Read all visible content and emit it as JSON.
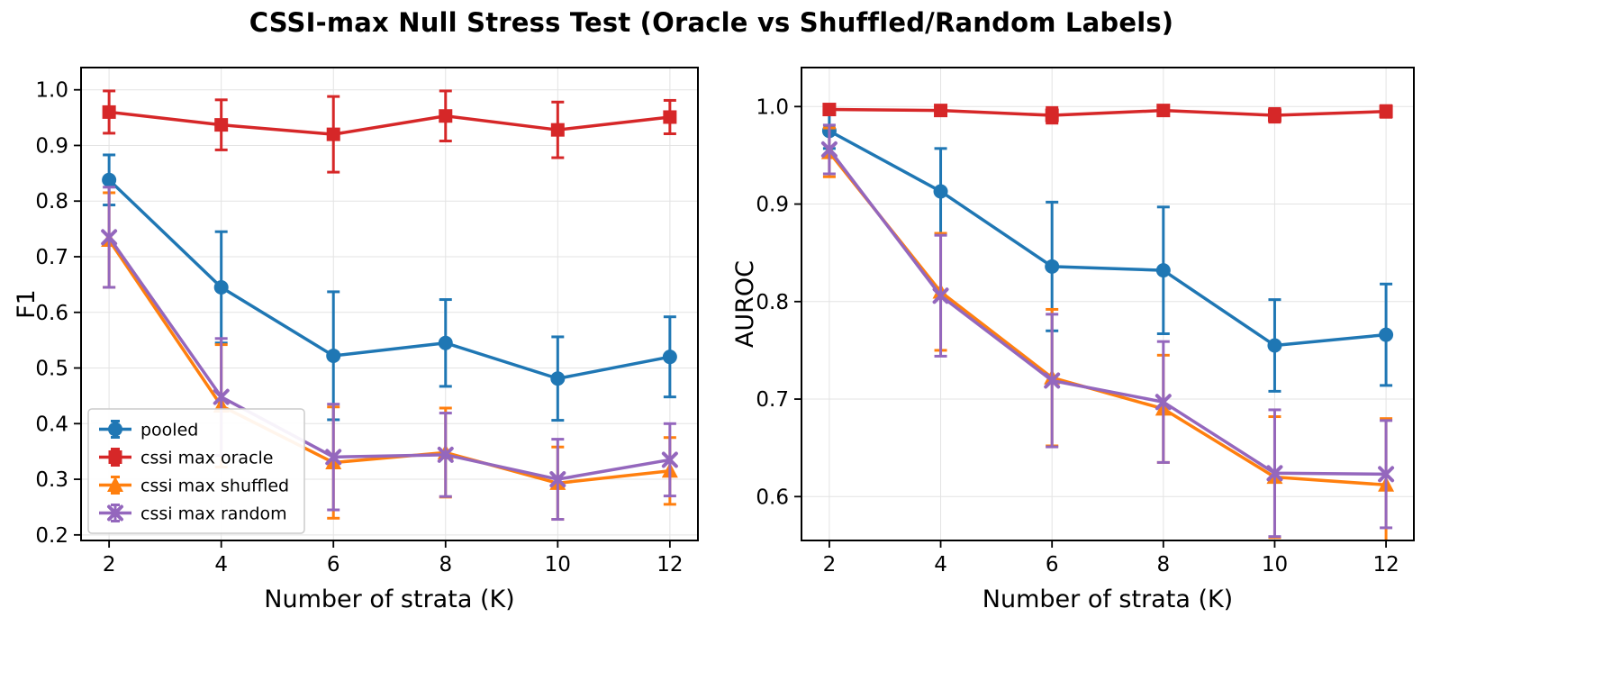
{
  "title": "CSSI-max Null Stress Test (Oracle vs Shuffled/Random Labels)",
  "colors": {
    "pooled": "#1f77b4",
    "cssi_max_oracle": "#d62728",
    "cssi_max_shuffled": "#ff7f0e",
    "cssi_max_random": "#9467bd"
  },
  "chart_data": [
    {
      "type": "line",
      "title": "",
      "xlabel": "Number of strata (K)",
      "ylabel": "F1",
      "x": [
        2,
        4,
        6,
        8,
        10,
        12
      ],
      "xlim": [
        1.5,
        12.5
      ],
      "ylim": [
        0.19,
        1.04
      ],
      "yticks": [
        0.2,
        0.3,
        0.4,
        0.5,
        0.6,
        0.7,
        0.8,
        0.9,
        1.0
      ],
      "grid": true,
      "legend": {
        "visible": true,
        "position": "lower left",
        "entries": [
          "pooled",
          "cssi max oracle",
          "cssi max shuffled",
          "cssi max random"
        ]
      },
      "series": [
        {
          "name": "pooled",
          "color": "#1f77b4",
          "marker": "circle",
          "values": [
            0.838,
            0.645,
            0.522,
            0.545,
            0.481,
            0.52
          ],
          "yerr": [
            0.045,
            0.1,
            0.115,
            0.078,
            0.075,
            0.072
          ]
        },
        {
          "name": "cssi max oracle",
          "color": "#d62728",
          "marker": "square",
          "values": [
            0.96,
            0.937,
            0.92,
            0.953,
            0.928,
            0.951
          ],
          "yerr": [
            0.038,
            0.045,
            0.068,
            0.045,
            0.05,
            0.03
          ]
        },
        {
          "name": "cssi max shuffled",
          "color": "#ff7f0e",
          "marker": "triangle",
          "values": [
            0.73,
            0.432,
            0.33,
            0.348,
            0.293,
            0.315
          ],
          "yerr": [
            0.085,
            0.11,
            0.1,
            0.08,
            0.065,
            0.06
          ]
        },
        {
          "name": "cssi max random",
          "color": "#9467bd",
          "marker": "x",
          "values": [
            0.735,
            0.448,
            0.34,
            0.344,
            0.3,
            0.335
          ],
          "yerr": [
            0.09,
            0.105,
            0.095,
            0.075,
            0.072,
            0.065
          ]
        }
      ]
    },
    {
      "type": "line",
      "title": "",
      "xlabel": "Number of strata (K)",
      "ylabel": "AUROC",
      "x": [
        2,
        4,
        6,
        8,
        10,
        12
      ],
      "xlim": [
        1.5,
        12.5
      ],
      "ylim": [
        0.555,
        1.04
      ],
      "yticks": [
        0.6,
        0.7,
        0.8,
        0.9,
        1.0
      ],
      "grid": true,
      "legend": {
        "visible": false,
        "position": "",
        "entries": []
      },
      "series": [
        {
          "name": "pooled",
          "color": "#1f77b4",
          "marker": "circle",
          "values": [
            0.975,
            0.913,
            0.836,
            0.832,
            0.755,
            0.766
          ],
          "yerr": [
            0.018,
            0.044,
            0.066,
            0.065,
            0.047,
            0.052
          ]
        },
        {
          "name": "cssi max oracle",
          "color": "#d62728",
          "marker": "square",
          "values": [
            0.997,
            0.996,
            0.991,
            0.996,
            0.991,
            0.995
          ],
          "yerr": [
            0.004,
            0.004,
            0.008,
            0.004,
            0.007,
            0.006
          ]
        },
        {
          "name": "cssi max shuffled",
          "color": "#ff7f0e",
          "marker": "triangle",
          "values": [
            0.953,
            0.81,
            0.722,
            0.69,
            0.62,
            0.612
          ],
          "yerr": [
            0.025,
            0.06,
            0.07,
            0.055,
            0.062,
            0.068
          ]
        },
        {
          "name": "cssi max random",
          "color": "#9467bd",
          "marker": "x",
          "values": [
            0.956,
            0.806,
            0.719,
            0.697,
            0.624,
            0.623
          ],
          "yerr": [
            0.025,
            0.062,
            0.068,
            0.062,
            0.065,
            0.055
          ]
        }
      ]
    }
  ]
}
